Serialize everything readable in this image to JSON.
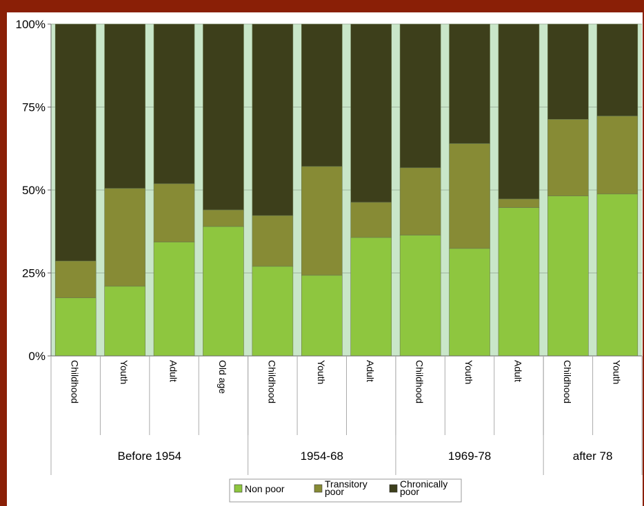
{
  "header": {
    "title": ""
  },
  "colors": {
    "non_poor": "#8ec63f",
    "transitory": "#878b35",
    "chronic": "#3d3f1b",
    "plot_bg": "#c9e6c9",
    "frame": "#8a1f06"
  },
  "chart_data": {
    "type": "bar",
    "stacked": true,
    "percent": true,
    "categories": [
      "Childhood",
      "Youth",
      "Adult",
      "Old age",
      "Childhood",
      "Youth",
      "Adult",
      "Childhood",
      "Youth",
      "Adult",
      "Childhood",
      "Youth"
    ],
    "groups": [
      {
        "label": "Before 1954",
        "count": 4
      },
      {
        "label": "1954-68",
        "count": 3
      },
      {
        "label": "1969-78",
        "count": 3
      },
      {
        "label": "after 78",
        "count": 2
      }
    ],
    "series": [
      {
        "name": "Non poor",
        "values": [
          17.5,
          21,
          34.3,
          39,
          27,
          24.3,
          35.7,
          36.4,
          32.4,
          44.7,
          48.2,
          48.8
        ]
      },
      {
        "name": "Transitory poor",
        "values": [
          11.1,
          29.5,
          17.6,
          5,
          15.3,
          32.8,
          10.6,
          20.3,
          31.6,
          2.6,
          23.1,
          23.5
        ]
      },
      {
        "name": "Chronically poor",
        "values": [
          71.4,
          49.5,
          48.1,
          56,
          57.7,
          42.9,
          53.7,
          43.3,
          36,
          52.7,
          28.7,
          27.7
        ]
      }
    ],
    "yticks": [
      "0%",
      "25%",
      "50%",
      "75%",
      "100%"
    ],
    "ylim": [
      0,
      100
    ],
    "xlabel": "",
    "ylabel": "",
    "legend": {
      "position": "bottom",
      "labels": [
        "Non poor",
        "Transitory poor",
        "Chronically poor"
      ]
    }
  }
}
